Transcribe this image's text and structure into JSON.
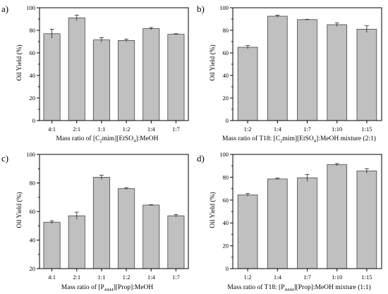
{
  "figure": {
    "bar_color": "#c0c0c0",
    "bar_stroke": "#444444",
    "axis_color": "#000000"
  },
  "chart_data": [
    {
      "type": "bar",
      "panel_label": "a)",
      "categories": [
        "4:1",
        "2:1",
        "1:1",
        "1:2",
        "1:4",
        "1:7"
      ],
      "values": [
        77,
        91,
        71.5,
        71,
        81.5,
        76.5
      ],
      "errors": [
        4,
        2.5,
        2,
        1.2,
        1,
        0.5
      ],
      "ylabel": "Oil Yield (%)",
      "xlabel_parts": [
        {
          "text": "Mass ratio of [C",
          "sub": false
        },
        {
          "text": "2",
          "sub": true
        },
        {
          "text": "mim][EtSO",
          "sub": false
        },
        {
          "text": "4",
          "sub": true
        },
        {
          "text": "]:MeOH",
          "sub": false
        }
      ],
      "ylim": [
        0,
        100
      ],
      "yticks": [
        "0",
        "20",
        "40",
        "60",
        "80",
        "100"
      ]
    },
    {
      "type": "bar",
      "panel_label": "b)",
      "categories": [
        "1:2",
        "1:4",
        "1:7",
        "1:10",
        "1:15"
      ],
      "values": [
        65,
        92.5,
        89.5,
        85,
        81
      ],
      "errors": [
        1.5,
        1,
        0.3,
        1.5,
        3
      ],
      "ylabel": "Oil Yield (%)",
      "xlabel_parts": [
        {
          "text": "Mass ratio of T18: [C",
          "sub": false
        },
        {
          "text": "2",
          "sub": true
        },
        {
          "text": "mim][EtSO",
          "sub": false
        },
        {
          "text": "4",
          "sub": true
        },
        {
          "text": "]:MeOH mixture (2:1)",
          "sub": false
        }
      ],
      "ylim": [
        0,
        100
      ],
      "yticks": [
        "0",
        "20",
        "40",
        "60",
        "80",
        "100"
      ]
    },
    {
      "type": "bar",
      "panel_label": "c)",
      "categories": [
        "4:1",
        "2:1",
        "1:1",
        "1:2",
        "1:4",
        "1:7"
      ],
      "values": [
        52.5,
        57,
        84,
        76,
        64.5,
        57
      ],
      "errors": [
        1,
        2.5,
        1.5,
        0.7,
        0.3,
        0.8
      ],
      "ylabel": "Oil Yield (%)",
      "xlabel_parts": [
        {
          "text": "Mass ratio of [P",
          "sub": false
        },
        {
          "text": "4444",
          "sub": true
        },
        {
          "text": "][Prop]:MeOH",
          "sub": false
        }
      ],
      "ylim": [
        20,
        100
      ],
      "yticks": [
        "20",
        "40",
        "60",
        "80",
        "100"
      ]
    },
    {
      "type": "bar",
      "panel_label": "d)",
      "categories": [
        "1:2",
        "1:4",
        "1:7",
        "1:10",
        "1:15"
      ],
      "values": [
        64.5,
        78.5,
        79.5,
        91,
        85.5
      ],
      "errors": [
        1.2,
        0.7,
        3,
        1,
        2
      ],
      "ylabel": "Oil Yield (%)",
      "xlabel_parts": [
        {
          "text": "Mass ratio of T18: [P",
          "sub": false
        },
        {
          "text": "4444",
          "sub": true
        },
        {
          "text": "][Prop]:MeOH mixture (1:1)",
          "sub": false
        }
      ],
      "ylim": [
        0,
        100
      ],
      "yticks": [
        "0",
        "20",
        "40",
        "60",
        "80",
        "100"
      ]
    }
  ]
}
